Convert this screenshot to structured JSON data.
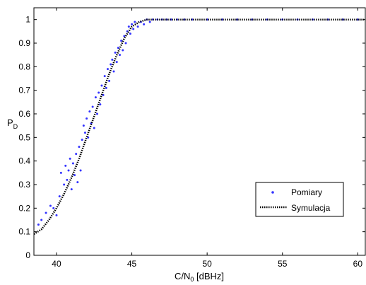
{
  "chart_data": {
    "type": "scatter",
    "title": "",
    "xlabel": "C/N",
    "xlabel_sub": "0",
    "xlabel_unit": " [dBHz]",
    "ylabel": "P",
    "ylabel_sub": "D",
    "xlim": [
      38.5,
      60.5
    ],
    "ylim": [
      0,
      1.05
    ],
    "x_ticks": [
      40,
      45,
      50,
      55,
      60
    ],
    "y_ticks": [
      0,
      0.1,
      0.2,
      0.3,
      0.4,
      0.5,
      0.6,
      0.7,
      0.8,
      0.9,
      1
    ],
    "grid": false,
    "legend_position": "lower-right",
    "series": [
      {
        "name": "Pomiary",
        "style": "points",
        "color": "#3333ff",
        "points": [
          [
            38.8,
            0.13
          ],
          [
            39.0,
            0.15
          ],
          [
            39.3,
            0.18
          ],
          [
            39.6,
            0.21
          ],
          [
            39.8,
            0.2
          ],
          [
            40.0,
            0.17
          ],
          [
            40.2,
            0.25
          ],
          [
            40.3,
            0.35
          ],
          [
            40.5,
            0.3
          ],
          [
            40.6,
            0.38
          ],
          [
            40.7,
            0.32
          ],
          [
            40.8,
            0.36
          ],
          [
            40.9,
            0.41
          ],
          [
            41.0,
            0.28
          ],
          [
            41.1,
            0.39
          ],
          [
            41.2,
            0.34
          ],
          [
            41.3,
            0.43
          ],
          [
            41.4,
            0.31
          ],
          [
            41.5,
            0.46
          ],
          [
            41.6,
            0.36
          ],
          [
            41.7,
            0.49
          ],
          [
            41.8,
            0.55
          ],
          [
            41.9,
            0.52
          ],
          [
            42.0,
            0.58
          ],
          [
            42.1,
            0.5
          ],
          [
            42.2,
            0.61
          ],
          [
            42.3,
            0.56
          ],
          [
            42.4,
            0.63
          ],
          [
            42.5,
            0.54
          ],
          [
            42.6,
            0.67
          ],
          [
            42.7,
            0.6
          ],
          [
            42.8,
            0.69
          ],
          [
            42.9,
            0.64
          ],
          [
            43.0,
            0.72
          ],
          [
            43.1,
            0.68
          ],
          [
            43.2,
            0.76
          ],
          [
            43.3,
            0.71
          ],
          [
            43.4,
            0.79
          ],
          [
            43.5,
            0.74
          ],
          [
            43.6,
            0.81
          ],
          [
            43.7,
            0.83
          ],
          [
            43.8,
            0.78
          ],
          [
            43.9,
            0.86
          ],
          [
            44.0,
            0.82
          ],
          [
            44.1,
            0.88
          ],
          [
            44.2,
            0.85
          ],
          [
            44.3,
            0.91
          ],
          [
            44.4,
            0.87
          ],
          [
            44.5,
            0.93
          ],
          [
            44.6,
            0.9
          ],
          [
            44.7,
            0.95
          ],
          [
            44.8,
            0.97
          ],
          [
            44.9,
            0.94
          ],
          [
            45.0,
            0.98
          ],
          [
            45.1,
            0.96
          ],
          [
            45.2,
            0.99
          ],
          [
            45.4,
            0.97
          ],
          [
            45.6,
            0.99
          ],
          [
            45.8,
            0.98
          ],
          [
            46.0,
            1.0
          ],
          [
            46.2,
            0.99
          ],
          [
            46.4,
            1.0
          ],
          [
            46.7,
            1.0
          ],
          [
            47.0,
            1.0
          ],
          [
            47.3,
            1.0
          ],
          [
            47.6,
            1.0
          ],
          [
            48.0,
            1.0
          ],
          [
            48.5,
            1.0
          ],
          [
            49.0,
            1.0
          ],
          [
            50.0,
            1.0
          ],
          [
            51.0,
            1.0
          ],
          [
            52.0,
            1.0
          ],
          [
            53.0,
            1.0
          ],
          [
            54.0,
            1.0
          ],
          [
            55.0,
            1.0
          ],
          [
            56.0,
            1.0
          ],
          [
            57.0,
            1.0
          ],
          [
            58.0,
            1.0
          ],
          [
            59.0,
            1.0
          ],
          [
            60.0,
            1.0
          ]
        ]
      },
      {
        "name": "Symulacja",
        "style": "dotted-line",
        "color": "#000000",
        "points": [
          [
            38.5,
            0.09
          ],
          [
            39.0,
            0.11
          ],
          [
            39.5,
            0.15
          ],
          [
            40.0,
            0.2
          ],
          [
            40.5,
            0.26
          ],
          [
            41.0,
            0.33
          ],
          [
            41.5,
            0.41
          ],
          [
            42.0,
            0.5
          ],
          [
            42.5,
            0.59
          ],
          [
            43.0,
            0.68
          ],
          [
            43.5,
            0.77
          ],
          [
            44.0,
            0.85
          ],
          [
            44.5,
            0.92
          ],
          [
            45.0,
            0.97
          ],
          [
            45.5,
            0.99
          ],
          [
            46.0,
            1.0
          ],
          [
            47.0,
            1.0
          ],
          [
            50.0,
            1.0
          ],
          [
            55.0,
            1.0
          ],
          [
            60.5,
            1.0
          ]
        ]
      }
    ]
  }
}
